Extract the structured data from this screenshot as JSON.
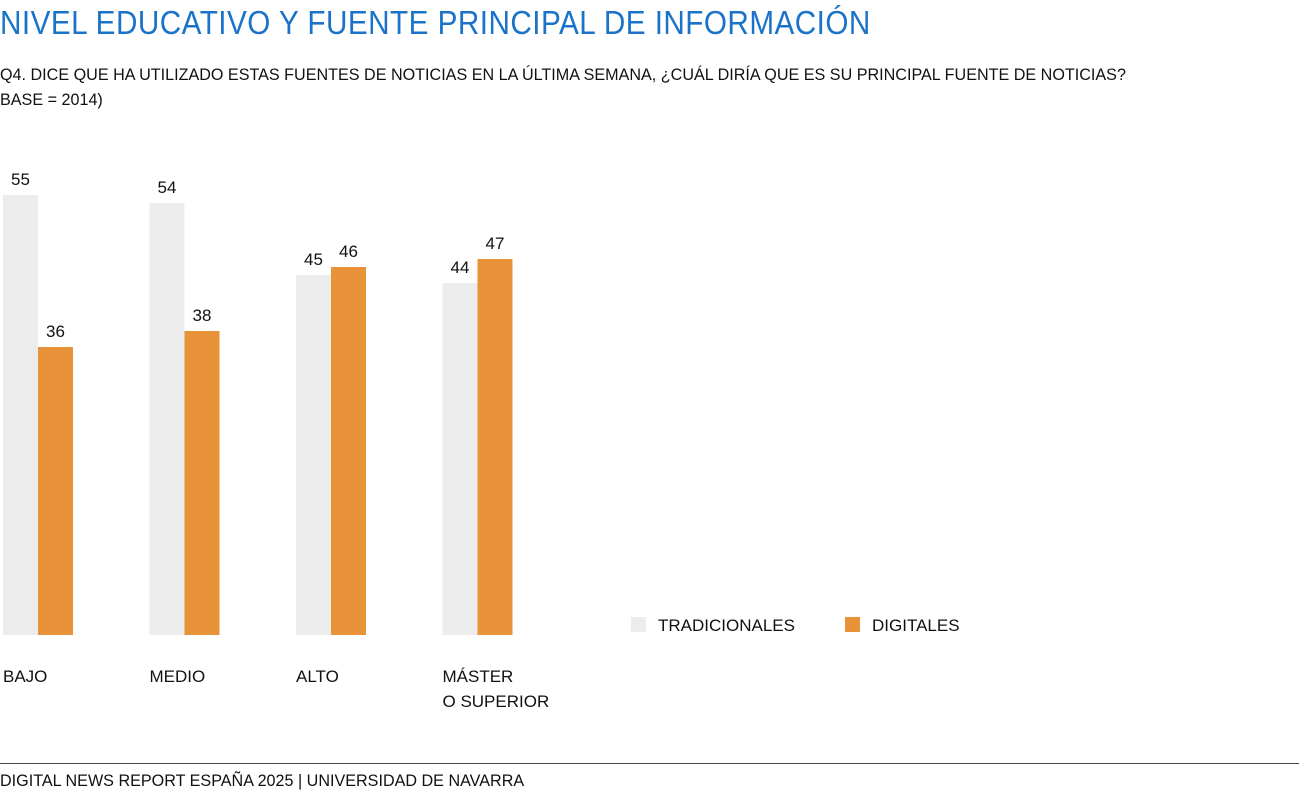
{
  "title": "NIVEL EDUCATIVO Y FUENTE PRINCIPAL DE INFORMACIÓN",
  "subtitle_line1": "Q4. DICE QUE HA UTILIZADO ESTAS FUENTES DE NOTICIAS EN LA ÚLTIMA SEMANA, ¿CUÁL DIRÍA QUE ES SU PRINCIPAL FUENTE DE NOTICIAS?",
  "subtitle_line2": "BASE = 2014)",
  "footer": "DIGITAL NEWS REPORT ESPAÑA 2025 | UNIVERSIDAD DE NAVARRA",
  "chart_data": {
    "type": "bar",
    "categories": [
      [
        "BAJO"
      ],
      [
        "MEDIO"
      ],
      [
        "ALTO"
      ],
      [
        "MÁSTER",
        "O SUPERIOR"
      ]
    ],
    "series": [
      {
        "name": "TRADICIONALES",
        "values": [
          55,
          54,
          45,
          44
        ],
        "color": "#ececec"
      },
      {
        "name": "DIGITALES",
        "values": [
          36,
          38,
          46,
          47
        ],
        "color": "#e8933a"
      }
    ],
    "ylim": [
      0,
      55
    ],
    "grid": false,
    "legend_position": "right",
    "data_labels": true
  }
}
